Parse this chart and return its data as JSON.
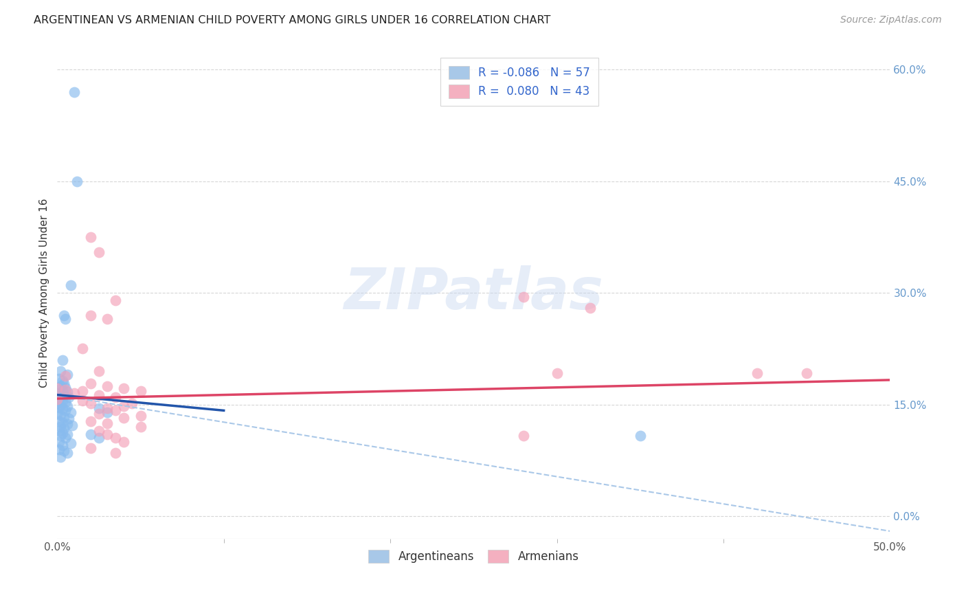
{
  "title": "ARGENTINEAN VS ARMENIAN CHILD POVERTY AMONG GIRLS UNDER 16 CORRELATION CHART",
  "source": "Source: ZipAtlas.com",
  "ylabel": "Child Poverty Among Girls Under 16",
  "xlim": [
    0.0,
    0.5
  ],
  "ylim": [
    -0.03,
    0.63
  ],
  "xtick_positions": [
    0.0,
    0.5
  ],
  "xtick_labels": [
    "0.0%",
    "50.0%"
  ],
  "ytick_right_positions": [
    0.0,
    0.15,
    0.3,
    0.45,
    0.6
  ],
  "ytick_right_labels": [
    "0.0%",
    "15.0%",
    "30.0%",
    "45.0%",
    "60.0%"
  ],
  "grid_yticks": [
    0.0,
    0.15,
    0.3,
    0.45,
    0.6
  ],
  "grid_color": "#cccccc",
  "background_color": "#ffffff",
  "watermark_text": "ZIPatlas",
  "legend_line1": "R = -0.086   N = 57",
  "legend_line2": "R =  0.080   N = 43",
  "legend_color1": "#a8c8e8",
  "legend_color2": "#f4b0c0",
  "legend_labels_bottom": [
    "Argentineans",
    "Armenians"
  ],
  "argentinean_dot_color": "#88bbee",
  "armenian_dot_color": "#f4a0b8",
  "argentinean_line_color": "#2255aa",
  "armenian_line_color": "#dd4466",
  "dashed_line_color": "#aac8e8",
  "dot_size": 130,
  "dot_alpha": 0.65,
  "blue_line_x": [
    0.0,
    0.1
  ],
  "blue_line_y": [
    0.163,
    0.142
  ],
  "pink_line_x": [
    0.0,
    0.5
  ],
  "pink_line_y": [
    0.158,
    0.183
  ],
  "dash_line_x": [
    0.0,
    0.5
  ],
  "dash_line_y": [
    0.163,
    -0.02
  ],
  "argentinean_points": [
    [
      0.01,
      0.57
    ],
    [
      0.012,
      0.45
    ],
    [
      0.008,
      0.31
    ],
    [
      0.004,
      0.27
    ],
    [
      0.005,
      0.265
    ],
    [
      0.003,
      0.21
    ],
    [
      0.002,
      0.195
    ],
    [
      0.006,
      0.19
    ],
    [
      0.001,
      0.185
    ],
    [
      0.003,
      0.182
    ],
    [
      0.004,
      0.178
    ],
    [
      0.002,
      0.175
    ],
    [
      0.005,
      0.173
    ],
    [
      0.001,
      0.17
    ],
    [
      0.003,
      0.168
    ],
    [
      0.006,
      0.167
    ],
    [
      0.0,
      0.165
    ],
    [
      0.002,
      0.163
    ],
    [
      0.004,
      0.162
    ],
    [
      0.007,
      0.16
    ],
    [
      0.001,
      0.158
    ],
    [
      0.003,
      0.155
    ],
    [
      0.005,
      0.153
    ],
    [
      0.0,
      0.152
    ],
    [
      0.002,
      0.15
    ],
    [
      0.006,
      0.148
    ],
    [
      0.001,
      0.146
    ],
    [
      0.003,
      0.144
    ],
    [
      0.005,
      0.142
    ],
    [
      0.008,
      0.14
    ],
    [
      0.0,
      0.138
    ],
    [
      0.002,
      0.136
    ],
    [
      0.004,
      0.133
    ],
    [
      0.007,
      0.131
    ],
    [
      0.001,
      0.128
    ],
    [
      0.003,
      0.126
    ],
    [
      0.006,
      0.124
    ],
    [
      0.009,
      0.122
    ],
    [
      0.002,
      0.12
    ],
    [
      0.004,
      0.118
    ],
    [
      0.001,
      0.115
    ],
    [
      0.003,
      0.112
    ],
    [
      0.006,
      0.11
    ],
    [
      0.002,
      0.108
    ],
    [
      0.005,
      0.105
    ],
    [
      0.001,
      0.1
    ],
    [
      0.008,
      0.098
    ],
    [
      0.003,
      0.095
    ],
    [
      0.001,
      0.09
    ],
    [
      0.004,
      0.088
    ],
    [
      0.006,
      0.085
    ],
    [
      0.002,
      0.08
    ],
    [
      0.02,
      0.11
    ],
    [
      0.025,
      0.105
    ],
    [
      0.025,
      0.145
    ],
    [
      0.03,
      0.14
    ],
    [
      0.35,
      0.108
    ]
  ],
  "armenian_points": [
    [
      0.02,
      0.375
    ],
    [
      0.025,
      0.355
    ],
    [
      0.02,
      0.27
    ],
    [
      0.03,
      0.265
    ],
    [
      0.035,
      0.29
    ],
    [
      0.015,
      0.225
    ],
    [
      0.025,
      0.195
    ],
    [
      0.005,
      0.188
    ],
    [
      0.02,
      0.178
    ],
    [
      0.03,
      0.175
    ],
    [
      0.0,
      0.172
    ],
    [
      0.005,
      0.17
    ],
    [
      0.015,
      0.168
    ],
    [
      0.04,
      0.172
    ],
    [
      0.01,
      0.165
    ],
    [
      0.025,
      0.163
    ],
    [
      0.05,
      0.168
    ],
    [
      0.035,
      0.16
    ],
    [
      0.0,
      0.157
    ],
    [
      0.015,
      0.155
    ],
    [
      0.02,
      0.152
    ],
    [
      0.045,
      0.152
    ],
    [
      0.04,
      0.148
    ],
    [
      0.03,
      0.145
    ],
    [
      0.035,
      0.142
    ],
    [
      0.025,
      0.138
    ],
    [
      0.05,
      0.135
    ],
    [
      0.04,
      0.132
    ],
    [
      0.02,
      0.128
    ],
    [
      0.03,
      0.125
    ],
    [
      0.05,
      0.12
    ],
    [
      0.025,
      0.115
    ],
    [
      0.03,
      0.11
    ],
    [
      0.035,
      0.105
    ],
    [
      0.04,
      0.1
    ],
    [
      0.02,
      0.092
    ],
    [
      0.035,
      0.085
    ],
    [
      0.28,
      0.295
    ],
    [
      0.32,
      0.28
    ],
    [
      0.3,
      0.192
    ],
    [
      0.42,
      0.192
    ],
    [
      0.45,
      0.192
    ],
    [
      0.28,
      0.108
    ]
  ]
}
